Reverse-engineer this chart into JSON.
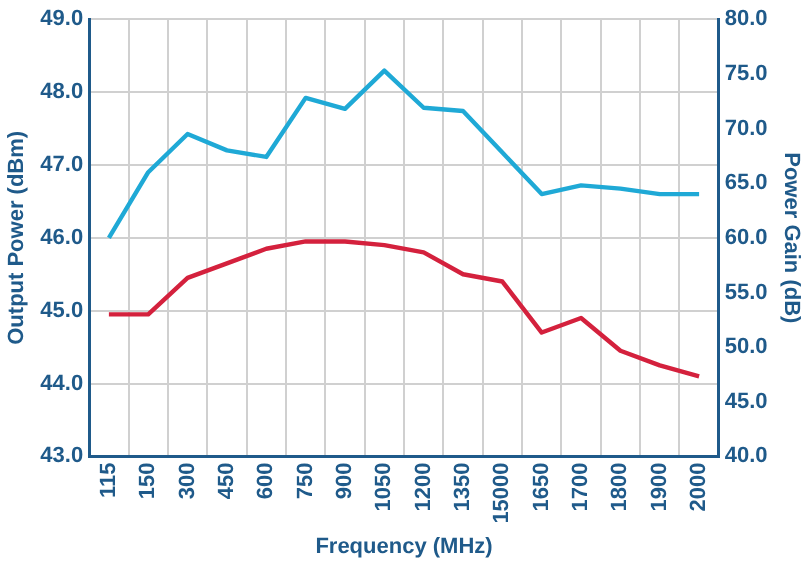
{
  "chart_data": {
    "type": "line",
    "xlabel": "Frequency (MHz)",
    "ylabel": "Output Power (dBm)",
    "y2label": "Power Gain (dB)",
    "categories": [
      "115",
      "150",
      "300",
      "450",
      "600",
      "750",
      "900",
      "1050",
      "1200",
      "1350",
      "15000",
      "1650",
      "1700",
      "1800",
      "1900",
      "2000"
    ],
    "series": [
      {
        "color": "#d4213d",
        "values": [
          44.95,
          44.95,
          45.45,
          45.65,
          45.85,
          45.95,
          45.95,
          45.9,
          45.8,
          45.5,
          45.4,
          44.7,
          44.9,
          44.45,
          44.25,
          44.1
        ]
      },
      {
        "color": "#1fa9d6",
        "axis": "y2",
        "values": [
          60.0,
          66.0,
          69.5,
          68.0,
          67.4,
          72.8,
          71.8,
          75.3,
          71.9,
          71.6,
          67.8,
          64.0,
          64.8,
          64.5,
          64.0,
          64.0
        ]
      }
    ],
    "ylim": [
      43,
      49
    ],
    "yticks": [
      {
        "value": 43,
        "label": "43.0"
      },
      {
        "value": 44,
        "label": "44.0"
      },
      {
        "value": 45,
        "label": "45.0"
      },
      {
        "value": 46,
        "label": "46.0"
      },
      {
        "value": 47,
        "label": "47.0"
      },
      {
        "value": 48,
        "label": "48.0"
      },
      {
        "value": 49,
        "label": "49.0"
      }
    ],
    "y2lim": [
      40,
      80
    ],
    "y2ticks": [
      {
        "value": 40,
        "label": "40.0"
      },
      {
        "value": 45,
        "label": "45.0"
      },
      {
        "value": 50,
        "label": "50.0"
      },
      {
        "value": 55,
        "label": "55.0"
      },
      {
        "value": 60,
        "label": "60.0"
      },
      {
        "value": 65,
        "label": "65.0"
      },
      {
        "value": 70,
        "label": "70.0"
      },
      {
        "value": 75,
        "label": "75.0"
      },
      {
        "value": 80,
        "label": "80.0"
      }
    ],
    "grid": true,
    "marker": "none",
    "line_style": "solid",
    "legend": false
  }
}
